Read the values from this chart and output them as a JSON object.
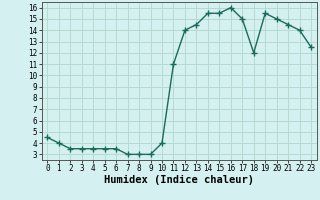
{
  "x": [
    0,
    1,
    2,
    3,
    4,
    5,
    6,
    7,
    8,
    9,
    10,
    11,
    12,
    13,
    14,
    15,
    16,
    17,
    18,
    19,
    20,
    21,
    22,
    23
  ],
  "y": [
    4.5,
    4.0,
    3.5,
    3.5,
    3.5,
    3.5,
    3.5,
    3.0,
    3.0,
    3.0,
    4.0,
    11.0,
    14.0,
    14.5,
    15.5,
    15.5,
    16.0,
    15.0,
    12.0,
    15.5,
    15.0,
    14.5,
    14.0,
    12.5
  ],
  "line_color": "#1a6b5a",
  "marker": "+",
  "marker_size": 4,
  "linewidth": 1.0,
  "xlabel": "Humidex (Indice chaleur)",
  "xlim": [
    -0.5,
    23.5
  ],
  "ylim": [
    2.5,
    16.5
  ],
  "yticks": [
    3,
    4,
    5,
    6,
    7,
    8,
    9,
    10,
    11,
    12,
    13,
    14,
    15,
    16
  ],
  "xticks": [
    0,
    1,
    2,
    3,
    4,
    5,
    6,
    7,
    8,
    9,
    10,
    11,
    12,
    13,
    14,
    15,
    16,
    17,
    18,
    19,
    20,
    21,
    22,
    23
  ],
  "bg_color": "#d4f0f0",
  "grid_color": "#b0d8cc",
  "tick_fontsize": 5.5,
  "label_fontsize": 7.5
}
